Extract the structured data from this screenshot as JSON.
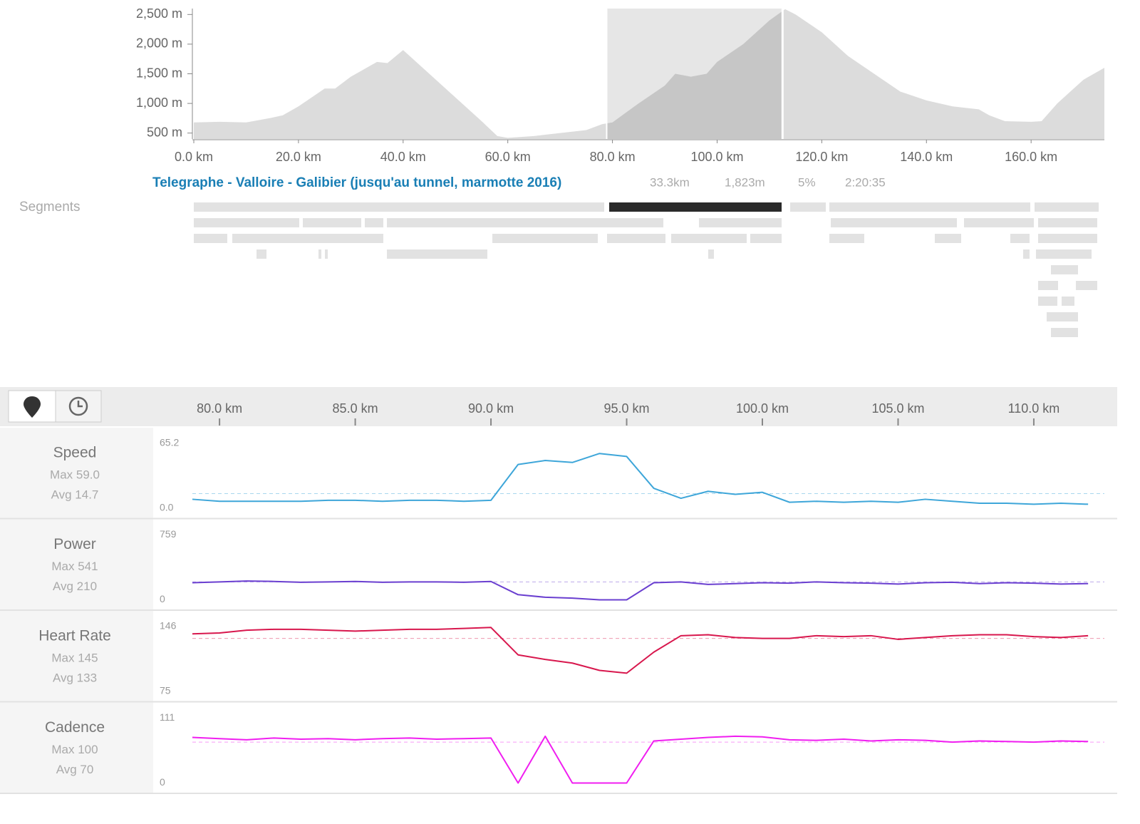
{
  "segments_label": "Segments",
  "selected_segment": {
    "name": "Telegraphe - Valloire - Galibier (jusqu'au tunnel, marmotte 2016)",
    "distance": "33.3km",
    "elevation": "1,823m",
    "grade": "5%",
    "time": "2:20:35"
  },
  "stream_axis": {
    "xlim": [
      79,
      112.6
    ],
    "xticks": [
      {
        "value": 80,
        "label": "80.0 km"
      },
      {
        "value": 85,
        "label": "85.0 km"
      },
      {
        "value": 90,
        "label": "90.0 km"
      },
      {
        "value": 95,
        "label": "95.0 km"
      },
      {
        "value": 100,
        "label": "100.0 km"
      },
      {
        "value": 105,
        "label": "105.0 km"
      },
      {
        "value": 110,
        "label": "110.0 km"
      }
    ],
    "x": [
      79,
      80,
      81,
      82,
      83,
      84,
      85,
      86,
      87,
      88,
      89,
      90,
      91,
      92,
      93,
      94,
      95,
      96,
      97,
      98,
      99,
      100,
      101,
      102,
      103,
      104,
      105,
      106,
      107,
      108,
      109,
      110,
      111,
      112
    ]
  },
  "chart_data": [
    {
      "type": "area",
      "color": "#dcdcdc",
      "selection_color": "#c6c6c6",
      "x": [
        0,
        5,
        10,
        15,
        17,
        20,
        25,
        27,
        30,
        35,
        37,
        40,
        45,
        50,
        55,
        58,
        60,
        65,
        70,
        75,
        78,
        80,
        85,
        90,
        92,
        95,
        98,
        100,
        105,
        110,
        113,
        115,
        120,
        125,
        130,
        135,
        140,
        145,
        150,
        152,
        155,
        160,
        162,
        165,
        170,
        174
      ],
      "values": [
        680,
        690,
        680,
        760,
        800,
        950,
        1250,
        1250,
        1450,
        1700,
        1680,
        1900,
        1500,
        1100,
        700,
        450,
        420,
        450,
        500,
        550,
        650,
        680,
        1000,
        1300,
        1500,
        1450,
        1500,
        1700,
        2000,
        2400,
        2590,
        2500,
        2200,
        1800,
        1500,
        1200,
        1050,
        950,
        900,
        800,
        700,
        690,
        700,
        1000,
        1400,
        1600
      ],
      "selection": [
        78.9,
        112.5
      ],
      "xlim": [
        0,
        174
      ],
      "ylim": [
        400,
        2600
      ],
      "xticks": [
        {
          "value": 0,
          "label": "0.0 km"
        },
        {
          "value": 20,
          "label": "20.0 km"
        },
        {
          "value": 40,
          "label": "40.0 km"
        },
        {
          "value": 60,
          "label": "60.0 km"
        },
        {
          "value": 80,
          "label": "80.0 km"
        },
        {
          "value": 100,
          "label": "100.0 km"
        },
        {
          "value": 120,
          "label": "120.0 km"
        },
        {
          "value": 140,
          "label": "140.0 km"
        },
        {
          "value": 160,
          "label": "160.0 km"
        }
      ],
      "yticks": [
        {
          "value": 500,
          "label": "500 m"
        },
        {
          "value": 1000,
          "label": "1,000 m"
        },
        {
          "value": 1500,
          "label": "1,500 m"
        },
        {
          "value": 2000,
          "label": "2,000 m"
        },
        {
          "value": 2500,
          "label": "2,500 m"
        }
      ]
    },
    {
      "type": "line",
      "title": "Speed",
      "color": "#3ea6d9",
      "max": {
        "value": 59.0,
        "label": "Max 59.0"
      },
      "avg": {
        "value": 14.7,
        "label": "Avg 14.7"
      },
      "ylim": [
        0,
        65.2
      ],
      "yticks": [
        {
          "value": 0,
          "label": "0.0"
        },
        65.2
      ],
      "values": [
        9,
        7,
        7,
        7,
        7,
        8,
        8,
        7,
        8,
        8,
        7,
        8,
        44,
        48,
        46,
        55,
        52,
        20,
        10,
        17,
        14,
        16,
        6,
        7,
        6,
        7,
        6,
        9,
        7,
        5,
        5,
        4,
        5,
        4
      ]
    },
    {
      "type": "line",
      "title": "Power",
      "color": "#6a3fd0",
      "max": {
        "value": 541,
        "label": "Max 541"
      },
      "avg": {
        "value": 210,
        "label": "Avg 210"
      },
      "ylim": [
        0,
        759
      ],
      "yticks": [
        0,
        759
      ],
      "values": [
        200,
        210,
        220,
        215,
        205,
        210,
        215,
        205,
        210,
        210,
        205,
        215,
        60,
        30,
        20,
        0,
        0,
        200,
        210,
        180,
        190,
        200,
        195,
        210,
        200,
        195,
        185,
        200,
        205,
        190,
        200,
        195,
        185,
        190
      ]
    },
    {
      "type": "line",
      "title": "Heart Rate",
      "color": "#d8174d",
      "max": {
        "value": 145,
        "label": "Max 145"
      },
      "avg": {
        "value": 133,
        "label": "Avg 133"
      },
      "ylim": [
        75,
        146
      ],
      "yticks": [
        75,
        146
      ],
      "values": [
        138,
        139,
        142,
        143,
        143,
        142,
        141,
        142,
        143,
        143,
        144,
        145,
        115,
        110,
        106,
        98,
        95,
        118,
        136,
        137,
        134,
        133,
        133,
        136,
        135,
        136,
        132,
        134,
        136,
        137,
        137,
        135,
        134,
        136
      ]
    },
    {
      "type": "line",
      "title": "Cadence",
      "color": "#f01ef0",
      "max": {
        "value": 100,
        "label": "Max 100"
      },
      "avg": {
        "value": 70,
        "label": "Avg 70"
      },
      "ylim": [
        0,
        111
      ],
      "yticks": [
        0,
        111
      ],
      "values": [
        78,
        76,
        74,
        77,
        75,
        76,
        74,
        76,
        77,
        75,
        76,
        77,
        0,
        80,
        0,
        0,
        0,
        72,
        75,
        78,
        80,
        79,
        74,
        73,
        75,
        72,
        74,
        73,
        70,
        72,
        71,
        70,
        72,
        71
      ]
    }
  ]
}
